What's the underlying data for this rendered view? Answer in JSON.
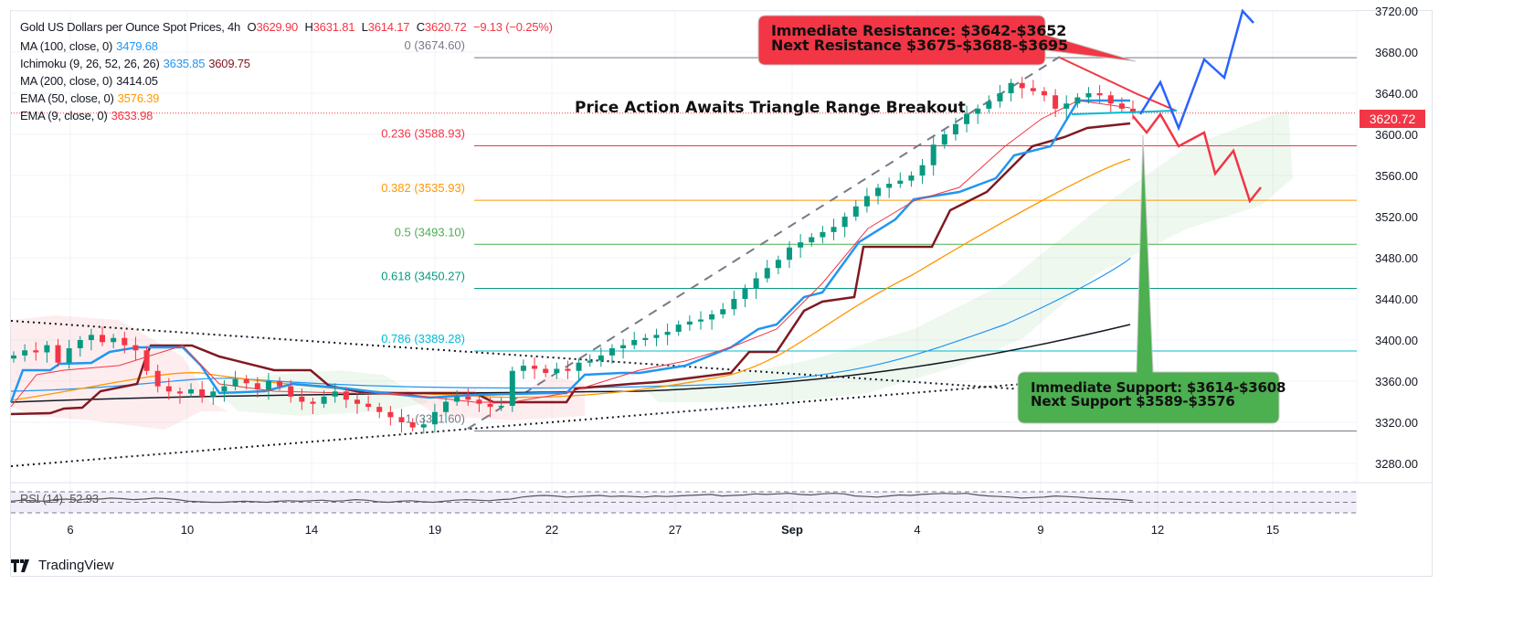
{
  "header": {
    "symbol": "Gold US Dollars per Ounce Spot Prices, 4h",
    "open_label": "O",
    "open": "3629.90",
    "high_label": "H",
    "high": "3631.81",
    "low_label": "L",
    "low": "3614.17",
    "close_label": "C",
    "close": "3620.72",
    "change": "−9.13 (−0.25%)"
  },
  "indicators": [
    {
      "name": "MA (100, close, 0)",
      "values": [
        "3479.68"
      ],
      "colors": [
        "#2196f3"
      ]
    },
    {
      "name": "Ichimoku (9, 26, 52, 26, 26)",
      "values": [
        "3635.85",
        "3609.75"
      ],
      "colors": [
        "#2196f3",
        "#801922"
      ]
    },
    {
      "name": "MA (200, close, 0)",
      "values": [
        "3414.05"
      ],
      "colors": [
        "#131722"
      ]
    },
    {
      "name": "EMA (50, close, 0)",
      "values": [
        "3576.39"
      ],
      "colors": [
        "#ff9800"
      ]
    },
    {
      "name": "EMA (9, close, 0)",
      "values": [
        "3633.98"
      ],
      "colors": [
        "#f23645"
      ]
    }
  ],
  "annotations": {
    "title": "Price Action Awaits Triangle Range Breakout",
    "resistance_line1": "Immediate Resistance: $3642-$3652",
    "resistance_line2": "Next Resistance $3675-$3688-$3695",
    "support_line1": "Immediate Support: $3614-$3608",
    "support_line2": "Next Support $3589-$3576",
    "resistance_color": "#f23645",
    "support_color": "#4caf50"
  },
  "current_price": "3620.72",
  "rsi": {
    "label": "RSI (14)",
    "value": "52.93"
  },
  "brand": "TradingView",
  "chart_data": {
    "type": "candlestick",
    "title": "Gold US Dollars per Ounce Spot Prices, 4h",
    "y_ticks": [
      "3720.00",
      "3680.00",
      "3640.00",
      "3600.00",
      "3560.00",
      "3520.00",
      "3480.00",
      "3440.00",
      "3400.00",
      "3360.00",
      "3320.00",
      "3280.00"
    ],
    "ylim": [
      3260,
      3725
    ],
    "x_ticks": [
      "6",
      "10",
      "14",
      "19",
      "22",
      "27",
      "Sep",
      "4",
      "9",
      "12",
      "15"
    ],
    "fib_levels": [
      {
        "ratio": "0",
        "price": 3674.6,
        "label": "0 (3674.60)",
        "color": "#787b86"
      },
      {
        "ratio": "0.236",
        "price": 3588.93,
        "label": "0.236 (3588.93)",
        "color": "#f23645"
      },
      {
        "ratio": "0.382",
        "price": 3535.93,
        "label": "0.382 (3535.93)",
        "color": "#ff9800"
      },
      {
        "ratio": "0.5",
        "price": 3493.1,
        "label": "0.5 (3493.10)",
        "color": "#4caf50"
      },
      {
        "ratio": "0.618",
        "price": 3450.27,
        "label": "0.618 (3450.27)",
        "color": "#089981"
      },
      {
        "ratio": "0.786",
        "price": 3389.28,
        "label": "0.786 (3389.28)",
        "color": "#00bcd4"
      },
      {
        "ratio": "1",
        "price": 3311.6,
        "label": "1 (3311.60)",
        "color": "#787b86"
      }
    ],
    "price_closes_approx": [
      3385,
      3390,
      3388,
      3395,
      3378,
      3392,
      3400,
      3405,
      3398,
      3402,
      3395,
      3390,
      3370,
      3355,
      3350,
      3348,
      3352,
      3345,
      3350,
      3355,
      3362,
      3358,
      3352,
      3360,
      3355,
      3345,
      3340,
      3338,
      3345,
      3350,
      3342,
      3338,
      3335,
      3330,
      3325,
      3320,
      3315,
      3318,
      3330,
      3340,
      3345,
      3342,
      3338,
      3335,
      3336,
      3370,
      3375,
      3372,
      3368,
      3372,
      3370,
      3378,
      3380,
      3385,
      3392,
      3395,
      3400,
      3402,
      3405,
      3408,
      3415,
      3418,
      3420,
      3425,
      3430,
      3440,
      3450,
      3460,
      3470,
      3478,
      3490,
      3495,
      3500,
      3505,
      3510,
      3520,
      3530,
      3540,
      3548,
      3552,
      3555,
      3560,
      3570,
      3590,
      3600,
      3610,
      3620,
      3625,
      3632,
      3640,
      3650,
      3645,
      3642,
      3638,
      3625,
      3630,
      3636,
      3640,
      3638,
      3630,
      3625,
      3620.72
    ],
    "rsi_levels": [
      70,
      50,
      30
    ]
  }
}
